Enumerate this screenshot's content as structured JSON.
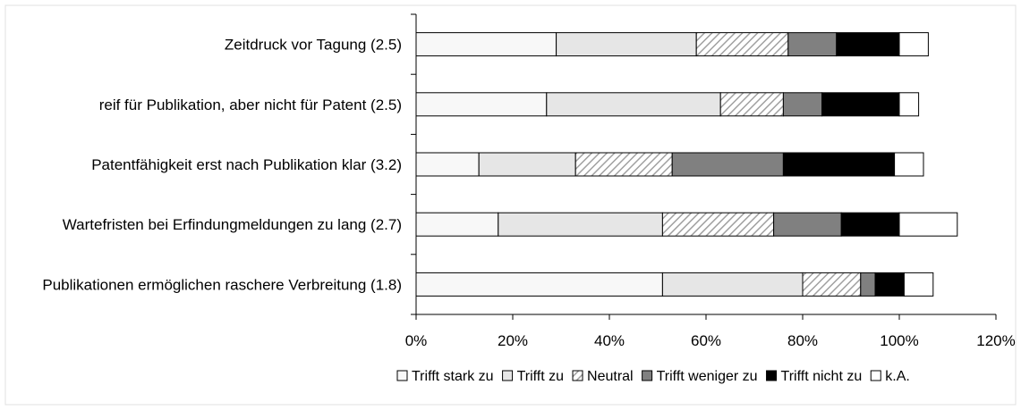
{
  "chart_data": {
    "type": "bar",
    "orientation": "horizontal",
    "stacked": true,
    "categories": [
      "Zeitdruck vor Tagung (2.5)",
      "reif für Publikation, aber nicht für Patent (2.5)",
      "Patentfähigkeit erst nach Publikation klar (3.2)",
      "Wartefristen bei Erfindungmeldungen zu lang (2.7)",
      "Publikationen ermöglichen raschere Verbreitung (1.8)"
    ],
    "series": [
      {
        "name": "Trifft stark zu",
        "values": [
          29,
          27,
          13,
          17,
          51
        ],
        "fill": "#f8f8f8"
      },
      {
        "name": "Trifft zu",
        "values": [
          29,
          36,
          20,
          34,
          29
        ],
        "fill": "#e6e6e6"
      },
      {
        "name": "Neutral",
        "values": [
          19,
          13,
          20,
          23,
          12
        ],
        "fill": "hatch"
      },
      {
        "name": "Trifft weniger zu",
        "values": [
          10,
          8,
          23,
          14,
          3
        ],
        "fill": "#808080"
      },
      {
        "name": "Trifft nicht zu",
        "values": [
          13,
          16,
          23,
          12,
          6
        ],
        "fill": "#000000"
      },
      {
        "name": "k.A.",
        "values": [
          6,
          4,
          6,
          12,
          6
        ],
        "fill": "#ffffff"
      }
    ],
    "x_ticks": [
      "0%",
      "20%",
      "40%",
      "60%",
      "80%",
      "100%",
      "120%"
    ],
    "xlim": [
      0,
      120
    ],
    "legend_position": "bottom",
    "grid": false,
    "title": "",
    "xlabel": "",
    "ylabel": ""
  }
}
